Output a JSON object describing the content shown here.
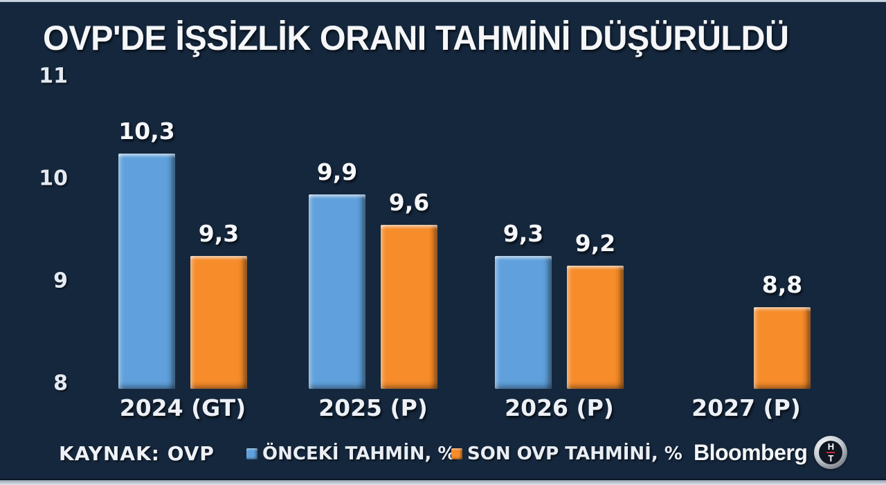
{
  "header": {
    "title": "OVP'DE İŞSİZLİK ORANI TAHMİNİ DÜŞÜRÜLDÜ"
  },
  "chart_data": {
    "type": "bar",
    "title": "OVP'DE İŞSİZLİK ORANI TAHMİNİ DÜŞÜRÜLDÜ",
    "categories": [
      "2024 (GT)",
      "2025 (P)",
      "2026 (P)",
      "2027 (P)"
    ],
    "series": [
      {
        "name": "ÖNCEKİ TAHMİN, %",
        "color": "#60a1dd",
        "values": [
          10.3,
          9.9,
          9.3,
          null
        ],
        "labels": [
          "10,3",
          "9,9",
          "9,3",
          null
        ]
      },
      {
        "name": "SON OVP TAHMİNİ, %",
        "color": "#f78c2a",
        "values": [
          9.3,
          9.6,
          9.2,
          8.8
        ],
        "labels": [
          "9,3",
          "9,6",
          "9,2",
          "8,8"
        ]
      }
    ],
    "yticks": [
      8,
      9,
      10,
      11
    ],
    "ylim": [
      8,
      11.2
    ],
    "grid": false,
    "legend_position": "bottom",
    "decimal_separator": ","
  },
  "footer": {
    "source_label": "KAYNAK: OVP",
    "brand_wordmark": "Bloomberg",
    "logo_top": "H",
    "logo_bottom": "T"
  },
  "colors": {
    "background": "#15273d",
    "bar_blue": "#60a1dd",
    "bar_orange": "#f78c2a",
    "text": "#eef2f7",
    "frame_strip": "#d6dfe9",
    "logo_red": "#c8272d"
  }
}
